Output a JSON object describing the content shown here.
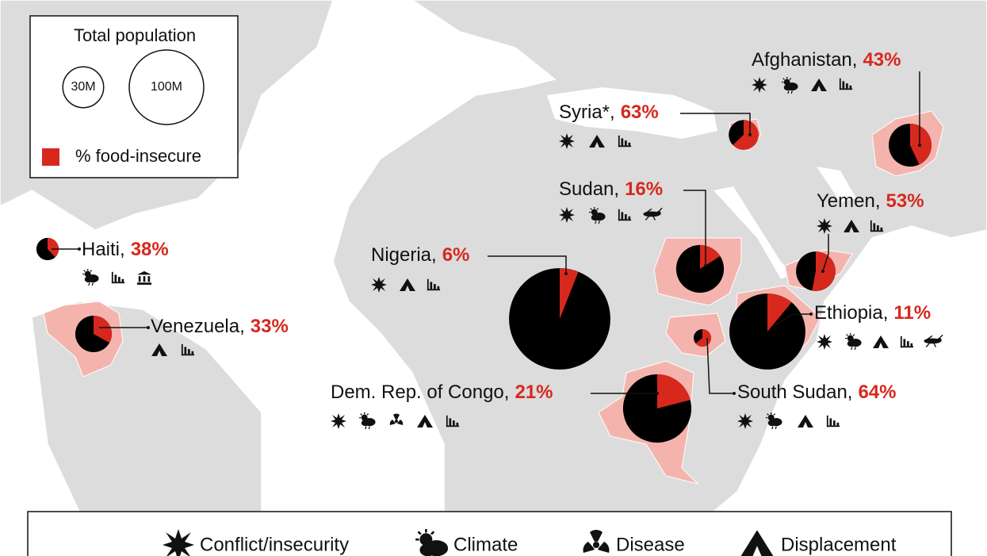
{
  "legend": {
    "title": "Total population",
    "sizes": [
      {
        "value": 30,
        "label": "30M"
      },
      {
        "value": 100,
        "label": "100M"
      }
    ],
    "food_label": "% food-insecure",
    "color": "#d7281e",
    "pie_color": "#000000"
  },
  "countries": [
    {
      "name": "Afghanistan,",
      "food_insecure": {
        "value": 43,
        "label": "43%"
      },
      "population": 33
    },
    {
      "name": "Syria*,",
      "food_insecure": {
        "value": 63,
        "label": "63%"
      },
      "population": 16
    },
    {
      "name": "Sudan,",
      "food_insecure": {
        "value": 16,
        "label": "16%"
      },
      "population": 41
    },
    {
      "name": "Yemen,",
      "food_insecure": {
        "value": 53,
        "label": "53%"
      },
      "population": 28
    },
    {
      "name": "Nigeria,",
      "food_insecure": {
        "value": 6,
        "label": "6%"
      },
      "population": 185
    },
    {
      "name": "Haiti,",
      "food_insecure": {
        "value": 38,
        "label": "38%"
      },
      "population": 9
    },
    {
      "name": "Venezuela,",
      "food_insecure": {
        "value": 33,
        "label": "33%"
      },
      "population": 24
    },
    {
      "name": "Ethiopia,",
      "food_insecure": {
        "value": 11,
        "label": "11%"
      },
      "population": 104
    },
    {
      "name": "South Sudan,",
      "food_insecure": {
        "value": 64,
        "label": "64%"
      },
      "population": 5.5
    },
    {
      "name": "Dem. Rep. of Congo,",
      "food_insecure": {
        "value": 21,
        "label": "21%"
      },
      "population": 84
    }
  ],
  "factors": [
    "Conflict/insecurity",
    "Climate",
    "Disease",
    "Displacement"
  ]
}
